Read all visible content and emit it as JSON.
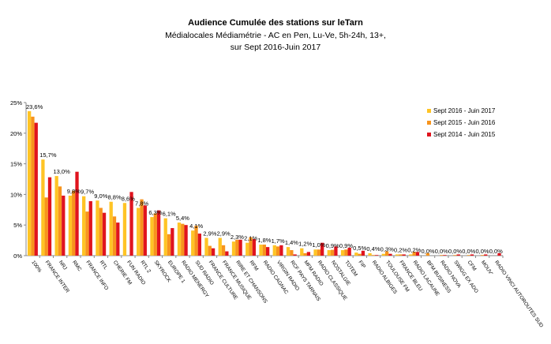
{
  "chart_data": {
    "type": "bar",
    "title": "Audience Cumulée des stations sur leTarn",
    "subtitle": [
      "Médialocales Médiamétrie - AC en Pen, Lu-Ve, 5h-24h, 13+,",
      "sur Sept 2016-Juin 2017"
    ],
    "xlabel": "",
    "ylabel": "",
    "ylim": [
      0,
      25
    ],
    "yticks": [
      "0%",
      "5%",
      "10%",
      "15%",
      "20%",
      "25%"
    ],
    "grid": false,
    "legend_position": "right",
    "categories": [
      "100%",
      "FRANCE INTER",
      "NRJ",
      "RMC",
      "FRANCE INFO",
      "RTL",
      "CHERIE FM",
      "FUN RADIO",
      "RTL 2",
      "SKYROCK",
      "EUROPE 1",
      "RADIO MENERGY",
      "SUD RADIO",
      "FRANCE CULTURE",
      "FRANCE MUSIQUE",
      "RIRE ET CHANSONS",
      "RFM",
      "RADIO CAGNAC",
      "VIRGIN RADIO",
      "RCF PAYS TARNAIS",
      "MFM RADIO",
      "RADIO CLASSIQUE",
      "NOSTALGIE",
      "TOTEM",
      "FIP",
      "RADIO ALBIGES",
      "TOULOUSE FM",
      "FRANCE BLEU",
      "RADIO LACAUNE",
      "BFM BUSINESS",
      "RADIO NOVA",
      "SWIGG EX ADO",
      "CFM",
      "MOUV'",
      "RADIO VINCI AUTOROUTES SUD"
    ],
    "series": [
      {
        "name": "Sept 2016 - Juin 2017",
        "color": "#FFC425",
        "values": [
          23.6,
          15.7,
          13.0,
          9.8,
          9.7,
          9.0,
          8.8,
          8.6,
          7.8,
          6.3,
          6.1,
          5.4,
          4.1,
          2.9,
          2.9,
          2.3,
          2.1,
          1.8,
          1.7,
          1.4,
          1.2,
          1.0,
          0.9,
          0.9,
          0.5,
          0.4,
          0.3,
          0.2,
          0.2,
          0.0,
          0.0,
          0.0,
          0.0,
          0.0,
          0.0
        ]
      },
      {
        "name": "Sept 2015 - Juin 2016",
        "color": "#F7941D",
        "values": [
          22.7,
          9.5,
          11.3,
          10.6,
          7.2,
          7.8,
          6.4,
          0.0,
          9.2,
          6.9,
          3.5,
          5.2,
          4.9,
          1.6,
          1.7,
          2.6,
          3.0,
          1.8,
          1.5,
          0.9,
          0.4,
          1.0,
          0.95,
          1.0,
          0.3,
          0.1,
          0.7,
          0.2,
          0.6,
          0.4,
          0.1,
          0.1,
          0.1,
          0.1,
          0.0
        ]
      },
      {
        "name": "Sept 2014 - Juin 2015",
        "color": "#E0141E",
        "values": [
          21.7,
          12.8,
          9.8,
          13.7,
          8.9,
          7.0,
          5.4,
          10.4,
          8.2,
          7.4,
          4.5,
          5.0,
          3.6,
          1.2,
          0.7,
          2.6,
          2.7,
          1.4,
          1.7,
          0.2,
          0.6,
          2.1,
          1.5,
          1.3,
          0.8,
          0.1,
          0.3,
          0.2,
          0.6,
          0.0,
          0.1,
          0.2,
          0.2,
          0.2,
          0.4
        ]
      }
    ],
    "data_labels": [
      "23,6%",
      "15,7%",
      "13,0%",
      "9,8%",
      "9,7%",
      "9,0%",
      "8,8%",
      "8,6%",
      "7,8%",
      "6,3%",
      "6,1%",
      "5,4%",
      "4,1%",
      "2,9%",
      "2,9%",
      "2,3%",
      "2,1%",
      "1,8%",
      "1,7%",
      "1,4%",
      "1,2%",
      "1,0%",
      "0,9%",
      "0,9%",
      "0,5%",
      "0,4%",
      "0,3%",
      "0,2%",
      "0,2%",
      "0,0%",
      "0,0%",
      "0,0%",
      "0,0%",
      "0,0%",
      "0,0%"
    ]
  }
}
